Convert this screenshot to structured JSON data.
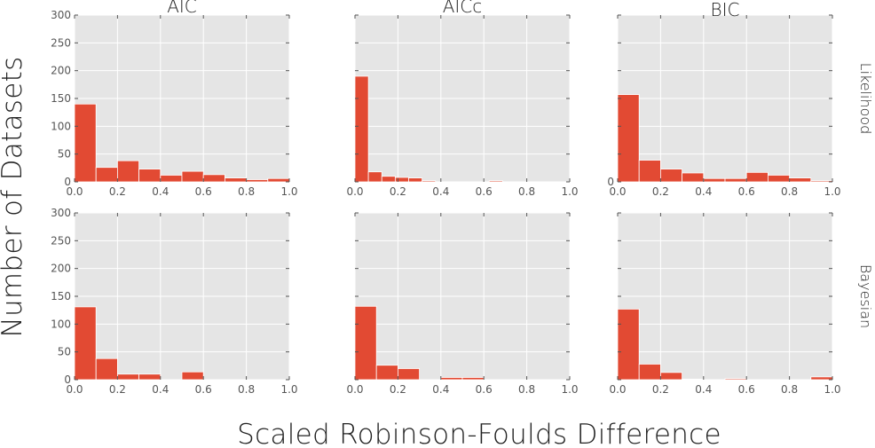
{
  "chart_data": {
    "type": "bar",
    "layout": "facet-grid",
    "xlabel": "Scaled Robinson-Foulds Difference",
    "ylabel": "Number of Datasets",
    "xlim": [
      0,
      1
    ],
    "ylim": [
      0,
      300
    ],
    "x_ticks": [
      "0.0",
      "0.2",
      "0.4",
      "0.6",
      "0.8",
      "1.0"
    ],
    "y_ticks": [
      "0",
      "50",
      "100",
      "150",
      "200",
      "250",
      "300"
    ],
    "bin_width": 0.1,
    "columns": [
      "AIC",
      "AICc",
      "BIC"
    ],
    "rows": [
      "Likelihood",
      "Bayesian"
    ],
    "colors": {
      "bar": "#e24a33",
      "panel": "#e5e5e5",
      "grid": "#ffffff"
    },
    "panels": [
      {
        "row": "Likelihood",
        "col": "AIC",
        "bins": [
          0,
          0.1,
          0.2,
          0.3,
          0.4,
          0.5,
          0.6,
          0.7,
          0.8,
          0.9
        ],
        "values": [
          140,
          26,
          38,
          23,
          12,
          19,
          13,
          7,
          4,
          6
        ],
        "y_tick_labels": true
      },
      {
        "row": "Likelihood",
        "col": "AICc",
        "bins": [
          0,
          0.0625,
          0.125,
          0.1875,
          0.25,
          0.3125,
          0.375,
          0.4375,
          0.5,
          0.5625,
          0.625
        ],
        "bin_width": 0.0625,
        "values": [
          190,
          18,
          10,
          8,
          7,
          2,
          0,
          0,
          0,
          0,
          2
        ],
        "y_tick_labels": false
      },
      {
        "row": "Likelihood",
        "col": "BIC",
        "bins": [
          0,
          0.1,
          0.2,
          0.3,
          0.4,
          0.5,
          0.6,
          0.7,
          0.8,
          0.9
        ],
        "values": [
          157,
          39,
          23,
          16,
          6,
          6,
          17,
          12,
          7,
          2
        ],
        "y_tick_labels": false,
        "zero_label_only": true
      },
      {
        "row": "Bayesian",
        "col": "AIC",
        "bins": [
          0,
          0.1,
          0.2,
          0.3,
          0.4,
          0.5
        ],
        "values": [
          131,
          38,
          10,
          10,
          0,
          14
        ],
        "y_tick_labels": true
      },
      {
        "row": "Bayesian",
        "col": "AICc",
        "bins": [
          0,
          0.1,
          0.2,
          0.3,
          0.4,
          0.5
        ],
        "values": [
          132,
          26,
          20,
          0,
          4,
          4
        ],
        "y_tick_labels": false
      },
      {
        "row": "Bayesian",
        "col": "BIC",
        "bins": [
          0,
          0.1,
          0.2,
          0.3,
          0.4,
          0.5,
          0.6,
          0.7,
          0.8,
          0.9
        ],
        "values": [
          127,
          28,
          13,
          1,
          0,
          2,
          0,
          0,
          0,
          5
        ],
        "y_tick_labels": false
      }
    ]
  }
}
